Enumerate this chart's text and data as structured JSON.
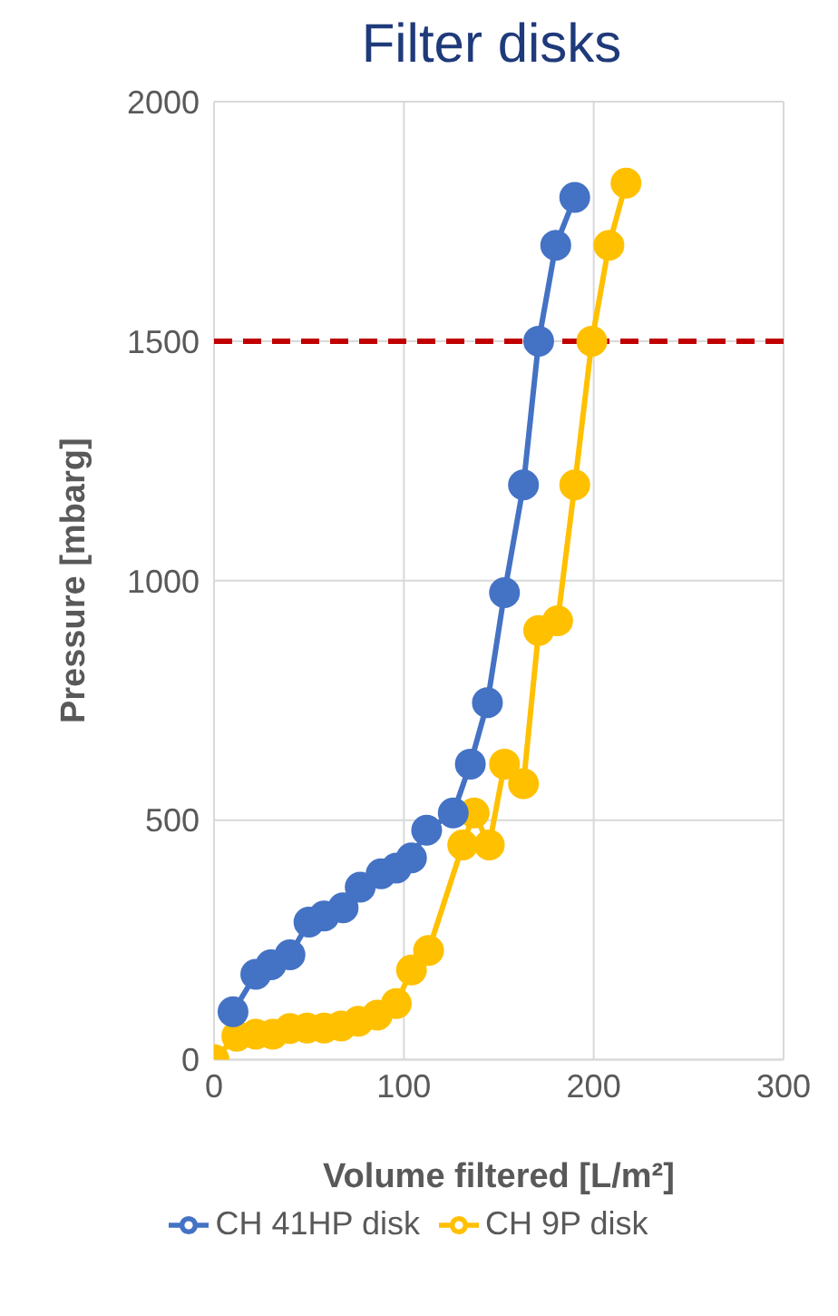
{
  "chart_data": {
    "type": "line",
    "title": "Filter disks",
    "xlabel": "Volume filtered [L/m²]",
    "ylabel": "Pressure [mbarg]",
    "xlim": [
      0,
      300
    ],
    "xticks": [
      0,
      100,
      200,
      300
    ],
    "ylim": [
      0,
      2000
    ],
    "yticks": [
      0,
      500,
      1000,
      1500,
      2000
    ],
    "grid": true,
    "legend": "bottom",
    "marker": "circle",
    "line_style": "solid",
    "series": [
      {
        "name": "CH 9P disk",
        "color": "#ffc000",
        "x": [
          0,
          12,
          22,
          31,
          40,
          49,
          58,
          67,
          76,
          86,
          96,
          104,
          113,
          131,
          137,
          145,
          153,
          163,
          171,
          181,
          190,
          199,
          208,
          217
        ],
        "values": [
          0,
          49,
          53,
          53,
          65,
          66,
          66,
          70,
          80,
          93,
          117,
          187,
          228,
          448,
          515,
          448,
          617,
          576,
          896,
          916,
          1200,
          1500,
          1700,
          1830
        ]
      },
      {
        "name": "CH 41HP disk",
        "color": "#4472c4",
        "x": [
          10,
          22,
          30,
          40,
          50,
          58,
          68,
          77,
          88,
          96,
          104,
          112,
          126,
          135,
          144,
          153,
          163,
          171,
          180,
          190
        ],
        "values": [
          100,
          178,
          198,
          219,
          287,
          300,
          317,
          360,
          388,
          400,
          421,
          479,
          515,
          617,
          745,
          975,
          1200,
          1500,
          1700,
          1800
        ]
      }
    ],
    "ref_lines": [
      {
        "axis": "y",
        "value": 1500,
        "color": "#c00000",
        "line_style": "dashed"
      }
    ]
  }
}
